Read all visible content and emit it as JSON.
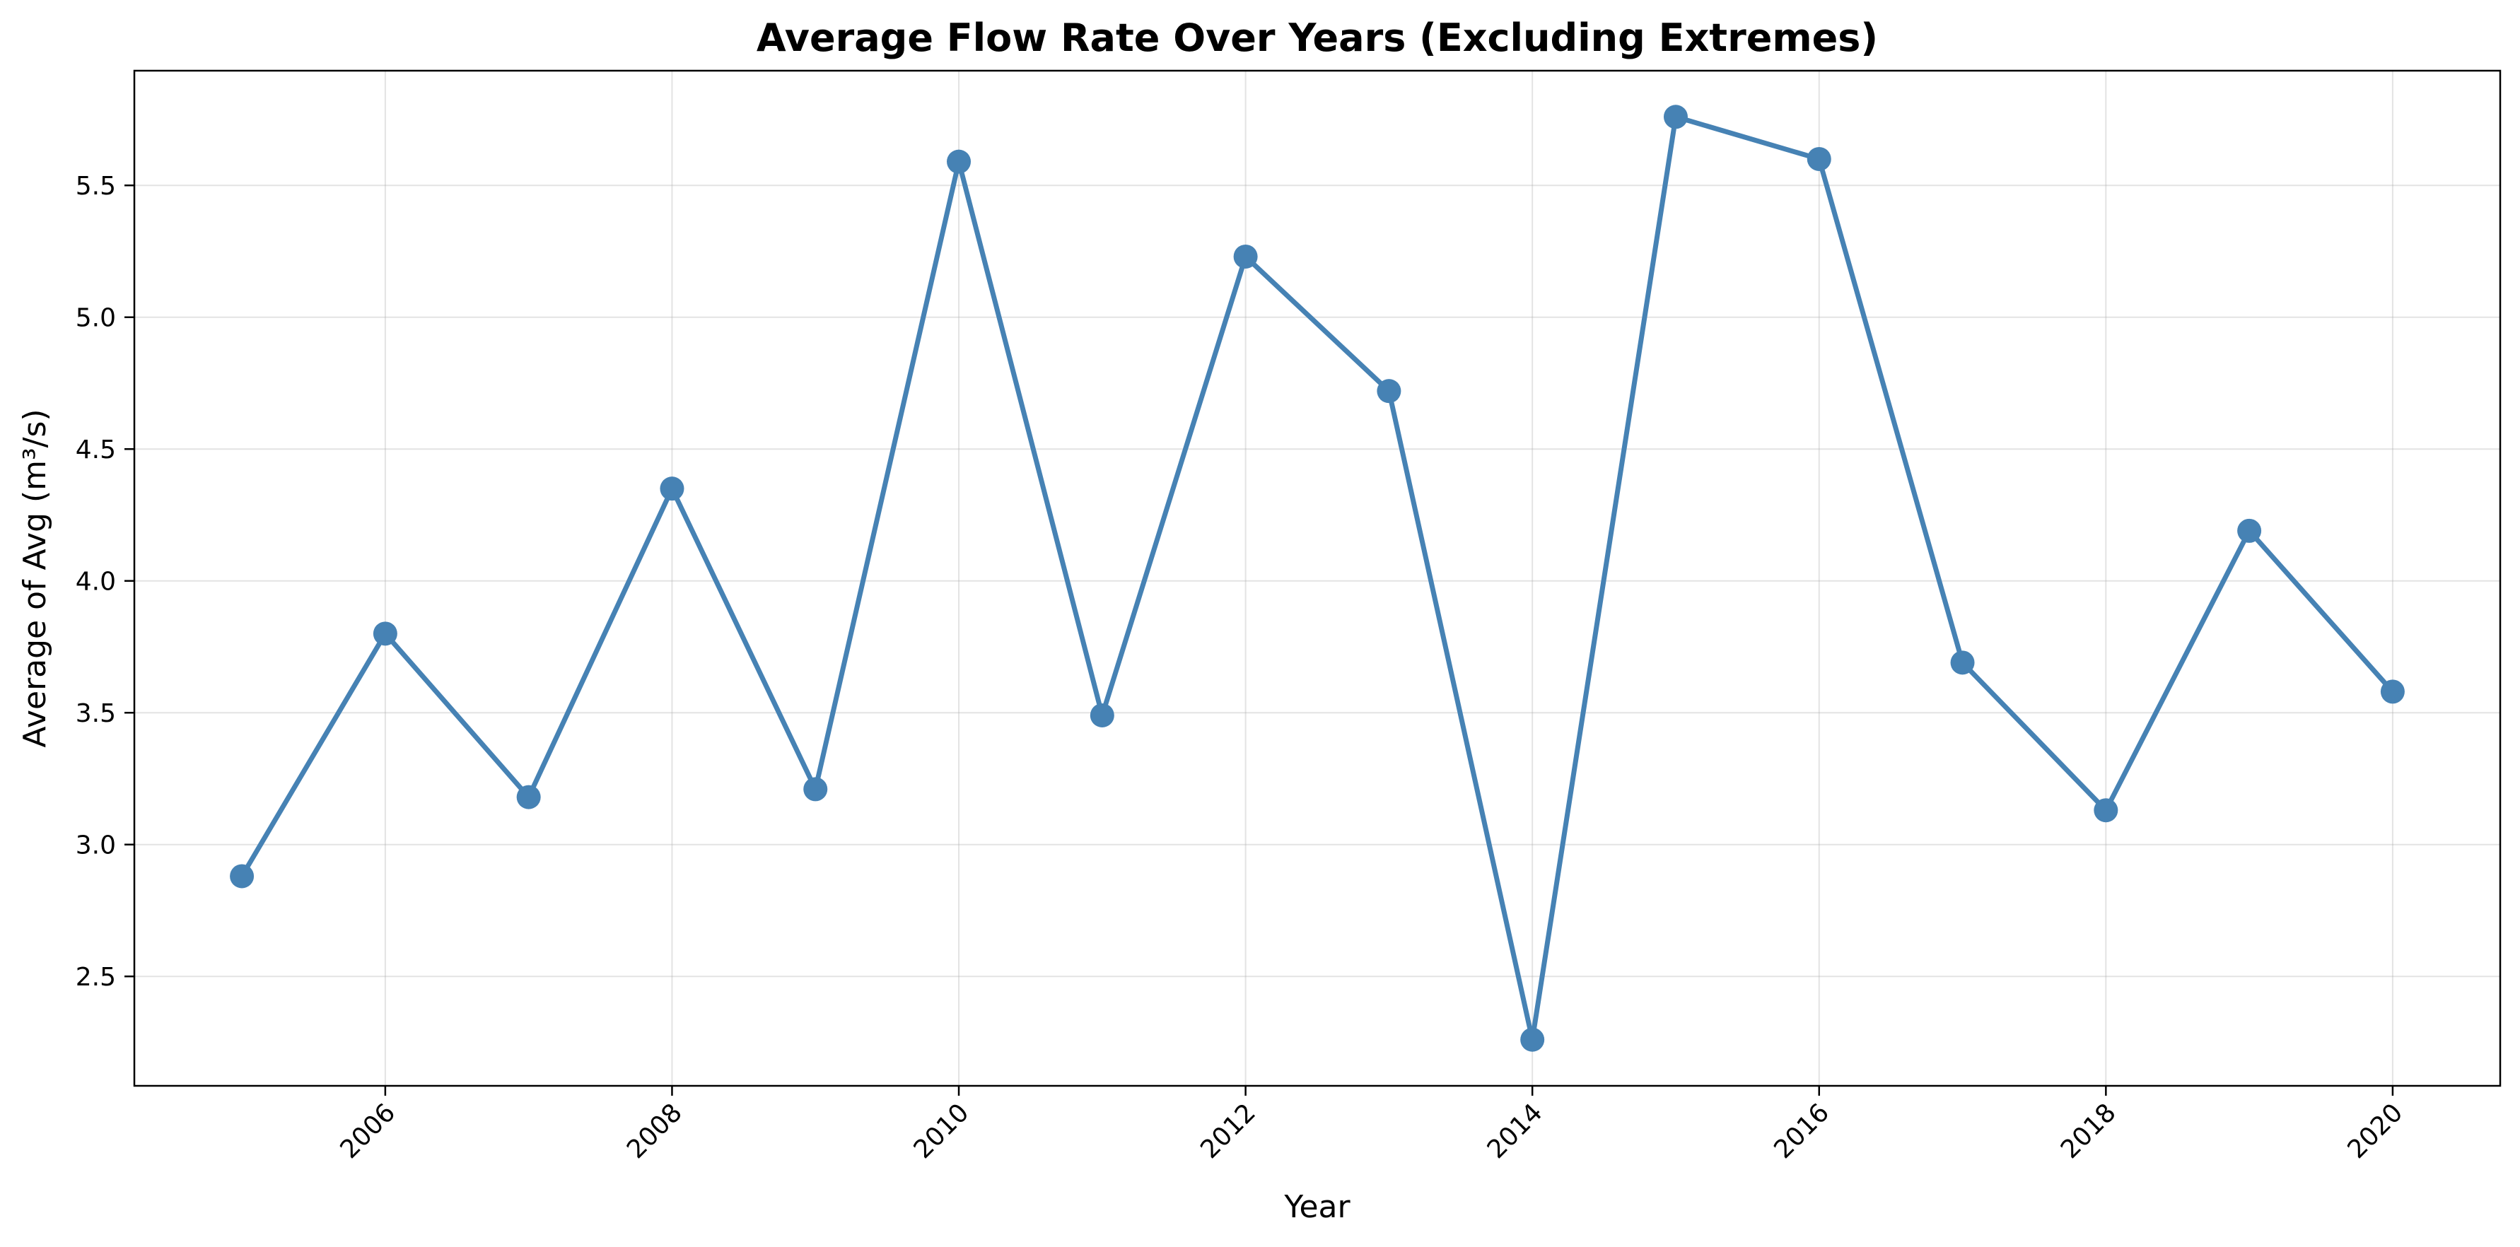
{
  "chart_data": {
    "type": "line",
    "title": "Average Flow Rate Over Years (Excluding Extremes)",
    "xlabel": "Year",
    "ylabel": "Average of Avg (m³/s)",
    "x": [
      2005,
      2006,
      2007,
      2008,
      2009,
      2010,
      2011,
      2012,
      2013,
      2014,
      2015,
      2016,
      2017,
      2018,
      2019,
      2020
    ],
    "series": [
      {
        "name": "Average of Avg",
        "values": [
          2.88,
          3.8,
          3.18,
          4.35,
          3.21,
          5.59,
          3.49,
          5.23,
          4.72,
          2.26,
          5.76,
          5.6,
          3.69,
          3.13,
          4.19,
          3.58
        ],
        "color": "#4682b4"
      }
    ],
    "xticks": [
      2006,
      2008,
      2010,
      2012,
      2014,
      2016,
      2018,
      2020
    ],
    "yticks": [
      2.5,
      3.0,
      3.5,
      4.0,
      4.5,
      5.0,
      5.5
    ],
    "ytick_labels": [
      "2.5",
      "3.0",
      "3.5",
      "4.0",
      "4.5",
      "5.0",
      "5.5"
    ],
    "xlim": [
      2004.25,
      2020.75
    ],
    "ylim": [
      2.085,
      5.935
    ],
    "grid": true,
    "xtick_rotation_deg": 45
  }
}
